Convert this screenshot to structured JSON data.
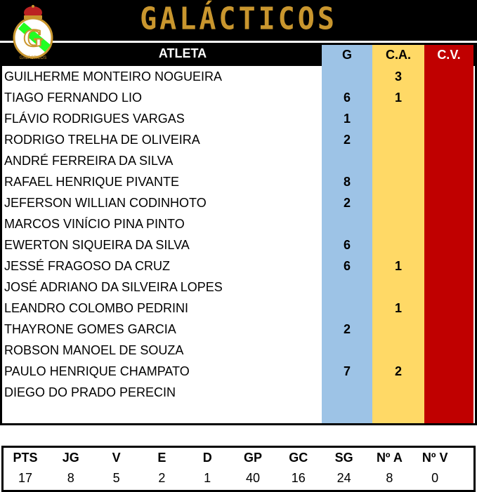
{
  "title": "GALÁCTICOS",
  "logo_text": "GALÁCTICOS",
  "colors": {
    "gold": "#c9962e",
    "goals": "#9dc3e6",
    "yellow": "#ffd966",
    "red": "#c00000"
  },
  "headers": {
    "athlete": "ATLETA",
    "g": "G",
    "ca": "C.A.",
    "cv": "C.V."
  },
  "players": [
    {
      "name": "GUILHERME MONTEIRO NOGUEIRA",
      "g": "",
      "ca": "3",
      "cv": ""
    },
    {
      "name": "TIAGO FERNANDO LIO",
      "g": "6",
      "ca": "1",
      "cv": ""
    },
    {
      "name": "FLÁVIO RODRIGUES VARGAS",
      "g": "1",
      "ca": "",
      "cv": ""
    },
    {
      "name": "RODRIGO TRELHA DE OLIVEIRA",
      "g": "2",
      "ca": "",
      "cv": ""
    },
    {
      "name": "ANDRÉ FERREIRA DA SILVA",
      "g": "",
      "ca": "",
      "cv": ""
    },
    {
      "name": "RAFAEL HENRIQUE PIVANTE",
      "g": "8",
      "ca": "",
      "cv": ""
    },
    {
      "name": "JEFERSON WILLIAN CODINHOTO",
      "g": "2",
      "ca": "",
      "cv": ""
    },
    {
      "name": "MARCOS VINÍCIO PINA PINTO",
      "g": "",
      "ca": "",
      "cv": ""
    },
    {
      "name": "EWERTON SIQUEIRA DA SILVA",
      "g": "6",
      "ca": "",
      "cv": ""
    },
    {
      "name": "JESSÉ FRAGOSO DA CRUZ",
      "g": "6",
      "ca": "1",
      "cv": ""
    },
    {
      "name": "JOSÉ ADRIANO DA SILVEIRA LOPES",
      "g": "",
      "ca": "",
      "cv": ""
    },
    {
      "name": "LEANDRO COLOMBO PEDRINI",
      "g": "",
      "ca": "1",
      "cv": ""
    },
    {
      "name": "THAYRONE GOMES GARCIA",
      "g": "2",
      "ca": "",
      "cv": ""
    },
    {
      "name": "ROBSON MANOEL DE SOUZA",
      "g": "",
      "ca": "",
      "cv": ""
    },
    {
      "name": "PAULO HENRIQUE CHAMPATO",
      "g": "7",
      "ca": "2",
      "cv": ""
    },
    {
      "name": "DIEGO DO PRADO PERECIN",
      "g": "",
      "ca": "",
      "cv": ""
    }
  ],
  "stats": [
    {
      "label": "PTS",
      "value": "17"
    },
    {
      "label": "JG",
      "value": "8"
    },
    {
      "label": "V",
      "value": "5"
    },
    {
      "label": "E",
      "value": "2"
    },
    {
      "label": "D",
      "value": "1"
    },
    {
      "label": "GP",
      "value": "40"
    },
    {
      "label": "GC",
      "value": "16"
    },
    {
      "label": "SG",
      "value": "24"
    },
    {
      "label": "Nº A",
      "value": "8"
    },
    {
      "label": "Nº V",
      "value": "0"
    }
  ]
}
